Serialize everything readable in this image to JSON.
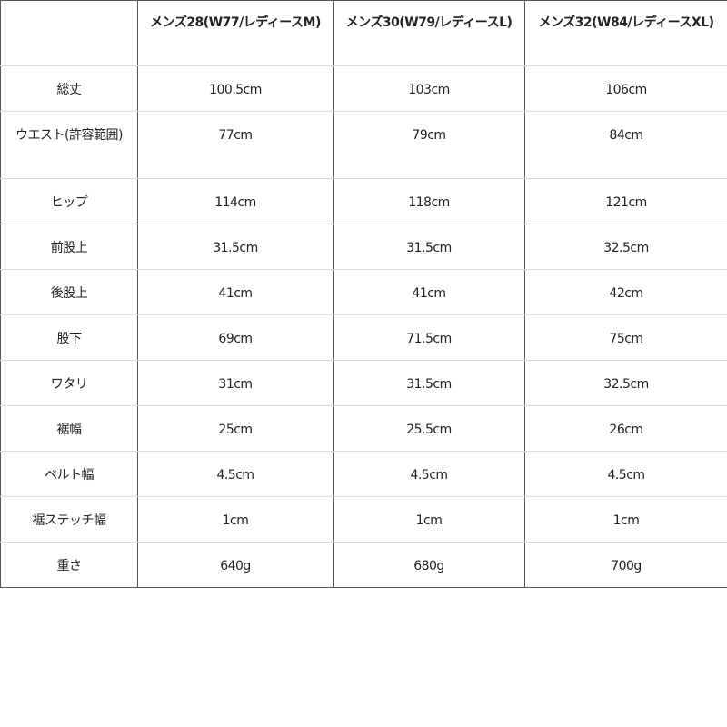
{
  "headers": [
    "",
    "メンズ28(W77/レディースM)",
    "メンズ30(W79/レディースL)",
    "メンズ32(W84/レディースXL)"
  ],
  "rows": [
    {
      "label": "総丈",
      "values": [
        "100.5cm",
        "103cm",
        "106cm"
      ]
    },
    {
      "label": "ウエスト(許容範囲)",
      "values": [
        "77cm",
        "79cm",
        "84cm"
      ]
    },
    {
      "label": "ヒップ",
      "values": [
        "114cm",
        "118cm",
        "121cm"
      ]
    },
    {
      "label": "前股上",
      "values": [
        "31.5cm",
        "31.5cm",
        "32.5cm"
      ]
    },
    {
      "label": "後股上",
      "values": [
        "41cm",
        "41cm",
        "42cm"
      ]
    },
    {
      "label": "股下",
      "values": [
        "69cm",
        "71.5cm",
        "75cm"
      ]
    },
    {
      "label": "ワタリ",
      "values": [
        "31cm",
        "31.5cm",
        "32.5cm"
      ]
    },
    {
      "label": "裾幅",
      "values": [
        "25cm",
        "25.5cm",
        "26cm"
      ]
    },
    {
      "label": "ベルト幅",
      "values": [
        "4.5cm",
        "4.5cm",
        "4.5cm"
      ]
    },
    {
      "label": "裾ステッチ幅",
      "values": [
        "1cm",
        "1cm",
        "1cm"
      ]
    },
    {
      "label": "重さ",
      "values": [
        "640g",
        "680g",
        "700g"
      ]
    }
  ]
}
